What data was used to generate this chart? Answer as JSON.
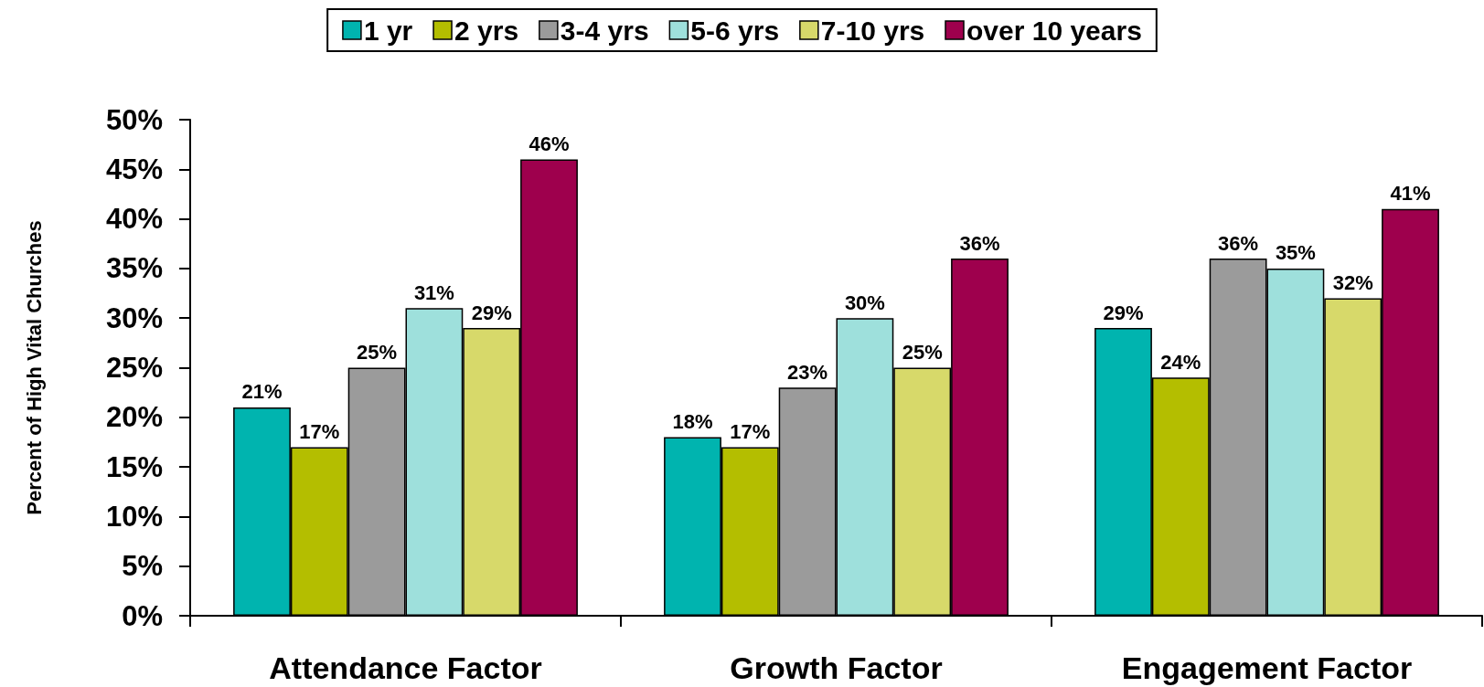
{
  "chart_data": {
    "type": "bar",
    "ylabel": "Percent of High Vital Churches",
    "categories": [
      "Attendance Factor",
      "Growth Factor",
      "Engagement Factor"
    ],
    "series": [
      {
        "name": "1 yr",
        "color": "#00b4af",
        "values": [
          21,
          18,
          29
        ],
        "value_labels": [
          "21%",
          "18%",
          "29%"
        ]
      },
      {
        "name": "2 yrs",
        "color": "#b4be00",
        "values": [
          17,
          17,
          24
        ],
        "value_labels": [
          "17%",
          "17%",
          "24%"
        ]
      },
      {
        "name": "3-4 yrs",
        "color": "#9b9b9b",
        "values": [
          25,
          23,
          36
        ],
        "value_labels": [
          "25%",
          "23%",
          "36%"
        ]
      },
      {
        "name": "5-6 yrs",
        "color": "#9ee0dc",
        "values": [
          31,
          30,
          35
        ],
        "value_labels": [
          "31%",
          "30%",
          "35%"
        ]
      },
      {
        "name": "7-10 yrs",
        "color": "#d7d96a",
        "values": [
          29,
          25,
          32
        ],
        "value_labels": [
          "29%",
          "25%",
          "32%"
        ]
      },
      {
        "name": "over 10 years",
        "color": "#9e004d",
        "values": [
          46,
          36,
          41
        ],
        "value_labels": [
          "46%",
          "36%",
          "41%"
        ]
      }
    ],
    "ylim": [
      0,
      50
    ],
    "yticks": [
      {
        "value": 0,
        "label": "0%"
      },
      {
        "value": 5,
        "label": "5%"
      },
      {
        "value": 10,
        "label": "10%"
      },
      {
        "value": 15,
        "label": "15%"
      },
      {
        "value": 20,
        "label": "20%"
      },
      {
        "value": 25,
        "label": "25%"
      },
      {
        "value": 30,
        "label": "30%"
      },
      {
        "value": 35,
        "label": "35%"
      },
      {
        "value": 40,
        "label": "40%"
      },
      {
        "value": 45,
        "label": "45%"
      },
      {
        "value": 50,
        "label": "50%"
      }
    ],
    "grid": false,
    "legend": "top"
  }
}
